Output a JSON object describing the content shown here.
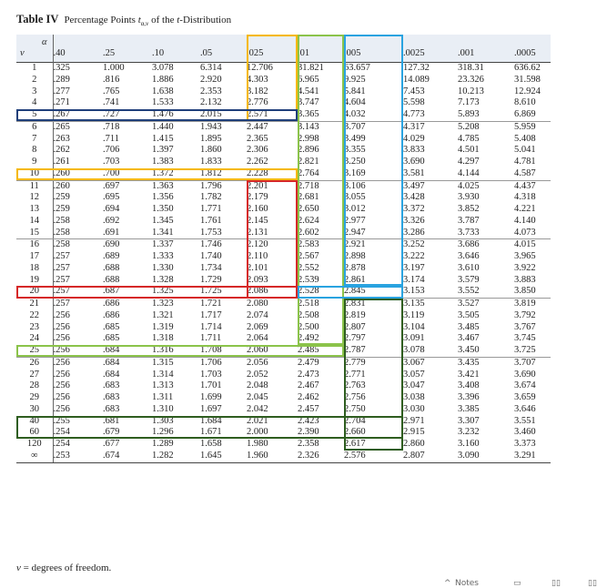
{
  "title": {
    "number": "Table IV",
    "text_before": "Percentage Points ",
    "symbol": "t",
    "subscript": "α,ν",
    "text_after": " of the ",
    "dist": "t",
    "text_end": "-Distribution"
  },
  "header": {
    "alpha_label": "α",
    "nu_label": "ν",
    "alphas": [
      ".40",
      ".25",
      ".10",
      ".05",
      ".025",
      ".01",
      ".005",
      ".0025",
      ".001",
      ".0005"
    ]
  },
  "rows": [
    {
      "nu": "1",
      "v": [
        ".325",
        "1.000",
        "3.078",
        "6.314",
        "12.706",
        "31.821",
        "63.657",
        "127.32",
        "318.31",
        "636.62"
      ]
    },
    {
      "nu": "2",
      "v": [
        ".289",
        ".816",
        "1.886",
        "2.920",
        "4.303",
        "6.965",
        "9.925",
        "14.089",
        "23.326",
        "31.598"
      ]
    },
    {
      "nu": "3",
      "v": [
        ".277",
        ".765",
        "1.638",
        "2.353",
        "3.182",
        "4.541",
        "5.841",
        "7.453",
        "10.213",
        "12.924"
      ]
    },
    {
      "nu": "4",
      "v": [
        ".271",
        ".741",
        "1.533",
        "2.132",
        "2.776",
        "3.747",
        "4.604",
        "5.598",
        "7.173",
        "8.610"
      ]
    },
    {
      "nu": "5",
      "v": [
        ".267",
        ".727",
        "1.476",
        "2.015",
        "2.571",
        "3.365",
        "4.032",
        "4.773",
        "5.893",
        "6.869"
      ]
    },
    {
      "nu": "6",
      "v": [
        ".265",
        ".718",
        "1.440",
        "1.943",
        "2.447",
        "3.143",
        "3.707",
        "4.317",
        "5.208",
        "5.959"
      ]
    },
    {
      "nu": "7",
      "v": [
        ".263",
        ".711",
        "1.415",
        "1.895",
        "2.365",
        "2.998",
        "3.499",
        "4.029",
        "4.785",
        "5.408"
      ]
    },
    {
      "nu": "8",
      "v": [
        ".262",
        ".706",
        "1.397",
        "1.860",
        "2.306",
        "2.896",
        "3.355",
        "3.833",
        "4.501",
        "5.041"
      ]
    },
    {
      "nu": "9",
      "v": [
        ".261",
        ".703",
        "1.383",
        "1.833",
        "2.262",
        "2.821",
        "3.250",
        "3.690",
        "4.297",
        "4.781"
      ]
    },
    {
      "nu": "10",
      "v": [
        ".260",
        ".700",
        "1.372",
        "1.812",
        "2.228",
        "2.764",
        "3.169",
        "3.581",
        "4.144",
        "4.587"
      ]
    },
    {
      "nu": "11",
      "v": [
        ".260",
        ".697",
        "1.363",
        "1.796",
        "2.201",
        "2.718",
        "3.106",
        "3.497",
        "4.025",
        "4.437"
      ]
    },
    {
      "nu": "12",
      "v": [
        ".259",
        ".695",
        "1.356",
        "1.782",
        "2.179",
        "2.681",
        "3.055",
        "3.428",
        "3.930",
        "4.318"
      ]
    },
    {
      "nu": "13",
      "v": [
        ".259",
        ".694",
        "1.350",
        "1.771",
        "2.160",
        "2.650",
        "3.012",
        "3.372",
        "3.852",
        "4.221"
      ]
    },
    {
      "nu": "14",
      "v": [
        ".258",
        ".692",
        "1.345",
        "1.761",
        "2.145",
        "2.624",
        "2.977",
        "3.326",
        "3.787",
        "4.140"
      ]
    },
    {
      "nu": "15",
      "v": [
        ".258",
        ".691",
        "1.341",
        "1.753",
        "2.131",
        "2.602",
        "2.947",
        "3.286",
        "3.733",
        "4.073"
      ]
    },
    {
      "nu": "16",
      "v": [
        ".258",
        ".690",
        "1.337",
        "1.746",
        "2.120",
        "2.583",
        "2.921",
        "3.252",
        "3.686",
        "4.015"
      ]
    },
    {
      "nu": "17",
      "v": [
        ".257",
        ".689",
        "1.333",
        "1.740",
        "2.110",
        "2.567",
        "2.898",
        "3.222",
        "3.646",
        "3.965"
      ]
    },
    {
      "nu": "18",
      "v": [
        ".257",
        ".688",
        "1.330",
        "1.734",
        "2.101",
        "2.552",
        "2.878",
        "3.197",
        "3.610",
        "3.922"
      ]
    },
    {
      "nu": "19",
      "v": [
        ".257",
        ".688",
        "1.328",
        "1.729",
        "2.093",
        "2.539",
        "2.861",
        "3.174",
        "3.579",
        "3.883"
      ]
    },
    {
      "nu": "20",
      "v": [
        ".257",
        ".687",
        "1.325",
        "1.725",
        "2.086",
        "2.528",
        "2.845",
        "3.153",
        "3.552",
        "3.850"
      ]
    },
    {
      "nu": "21",
      "v": [
        ".257",
        ".686",
        "1.323",
        "1.721",
        "2.080",
        "2.518",
        "2.831",
        "3.135",
        "3.527",
        "3.819"
      ]
    },
    {
      "nu": "22",
      "v": [
        ".256",
        ".686",
        "1.321",
        "1.717",
        "2.074",
        "2.508",
        "2.819",
        "3.119",
        "3.505",
        "3.792"
      ]
    },
    {
      "nu": "23",
      "v": [
        ".256",
        ".685",
        "1.319",
        "1.714",
        "2.069",
        "2.500",
        "2.807",
        "3.104",
        "3.485",
        "3.767"
      ]
    },
    {
      "nu": "24",
      "v": [
        ".256",
        ".685",
        "1.318",
        "1.711",
        "2.064",
        "2.492",
        "2.797",
        "3.091",
        "3.467",
        "3.745"
      ]
    },
    {
      "nu": "25",
      "v": [
        ".256",
        ".684",
        "1.316",
        "1.708",
        "2.060",
        "2.485",
        "2.787",
        "3.078",
        "3.450",
        "3.725"
      ]
    },
    {
      "nu": "26",
      "v": [
        ".256",
        ".684",
        "1.315",
        "1.706",
        "2.056",
        "2.479",
        "2.779",
        "3.067",
        "3.435",
        "3.707"
      ]
    },
    {
      "nu": "27",
      "v": [
        ".256",
        ".684",
        "1.314",
        "1.703",
        "2.052",
        "2.473",
        "2.771",
        "3.057",
        "3.421",
        "3.690"
      ]
    },
    {
      "nu": "28",
      "v": [
        ".256",
        ".683",
        "1.313",
        "1.701",
        "2.048",
        "2.467",
        "2.763",
        "3.047",
        "3.408",
        "3.674"
      ]
    },
    {
      "nu": "29",
      "v": [
        ".256",
        ".683",
        "1.311",
        "1.699",
        "2.045",
        "2.462",
        "2.756",
        "3.038",
        "3.396",
        "3.659"
      ]
    },
    {
      "nu": "30",
      "v": [
        ".256",
        ".683",
        "1.310",
        "1.697",
        "2.042",
        "2.457",
        "2.750",
        "3.030",
        "3.385",
        "3.646"
      ]
    },
    {
      "nu": "40",
      "v": [
        ".255",
        ".681",
        "1.303",
        "1.684",
        "2.021",
        "2.423",
        "2.704",
        "2.971",
        "3.307",
        "3.551"
      ]
    },
    {
      "nu": "60",
      "v": [
        ".254",
        ".679",
        "1.296",
        "1.671",
        "2.000",
        "2.390",
        "2.660",
        "2.915",
        "3.232",
        "3.460"
      ]
    },
    {
      "nu": "120",
      "v": [
        ".254",
        ".677",
        "1.289",
        "1.658",
        "1.980",
        "2.358",
        "2.617",
        "2.860",
        "3.160",
        "3.373"
      ]
    },
    {
      "nu": "∞",
      "v": [
        ".253",
        ".674",
        "1.282",
        "1.645",
        "1.960",
        "2.326",
        "2.576",
        "2.807",
        "3.090",
        "3.291"
      ]
    }
  ],
  "footer": {
    "symbol": "ν",
    "text": " = degrees of freedom."
  },
  "highlight_colors": {
    "orange": "#f5b800",
    "green_light": "#8bc34a",
    "blue_light": "#29a3e0",
    "navy": "#1f3f7a",
    "red": "#d62828",
    "dark_green": "#2e5d1f"
  },
  "viewer_toolbar": {
    "notes_label": "Notes"
  }
}
